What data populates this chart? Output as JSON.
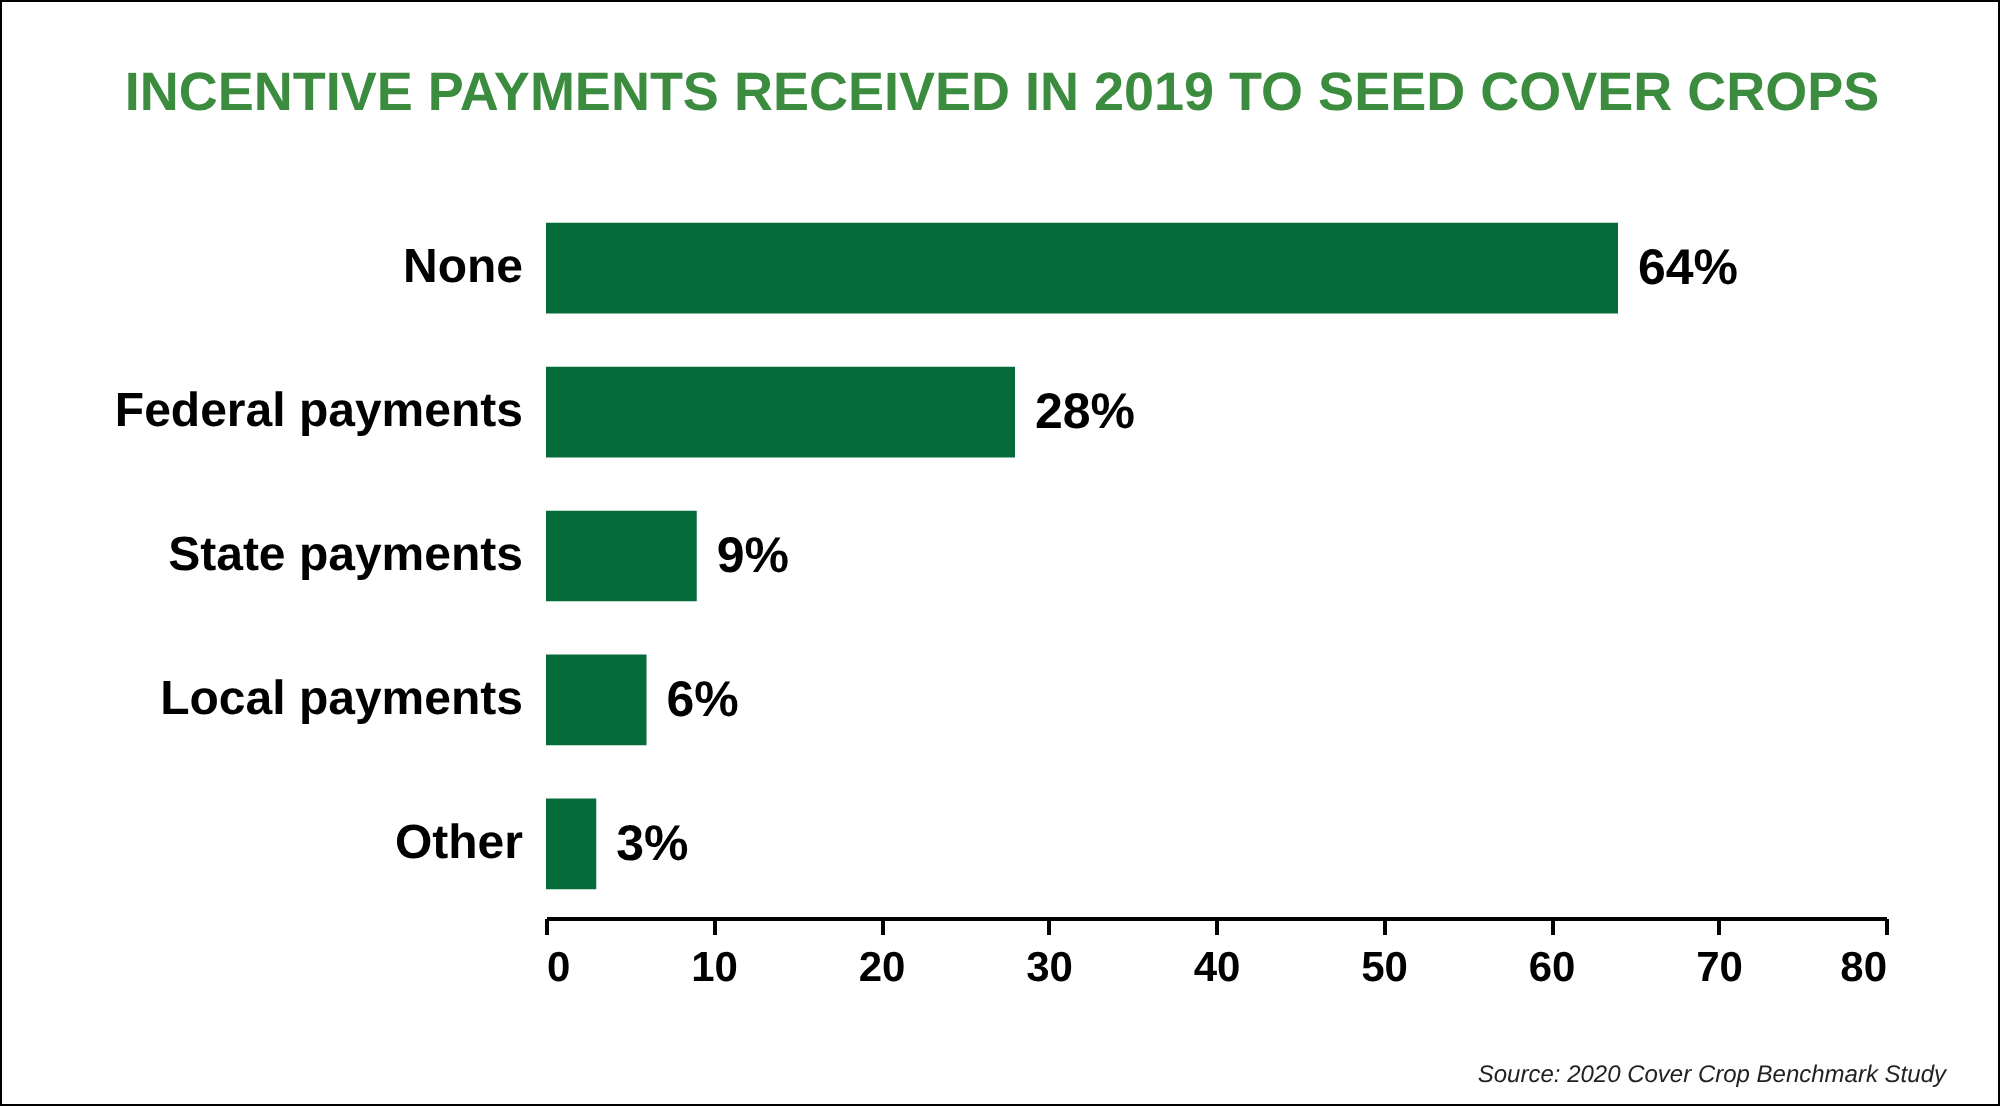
{
  "chart_data": {
    "type": "bar",
    "orientation": "horizontal",
    "title": "INCENTIVE PAYMENTS RECEIVED IN 2019 TO SEED COVER CROPS",
    "categories": [
      "None",
      "Federal payments",
      "State payments",
      "Local payments",
      "Other"
    ],
    "values": [
      64,
      28,
      9,
      6,
      3
    ],
    "value_labels": [
      "64%",
      "28%",
      "9%",
      "6%",
      "3%"
    ],
    "color": "#056b3b",
    "xlim": [
      0,
      80
    ],
    "xticks": [
      0,
      10,
      20,
      30,
      40,
      50,
      60,
      70,
      80
    ],
    "grid": false,
    "annotations": [
      "Source: 2020 Cover Crop Benchmark Study"
    ]
  }
}
